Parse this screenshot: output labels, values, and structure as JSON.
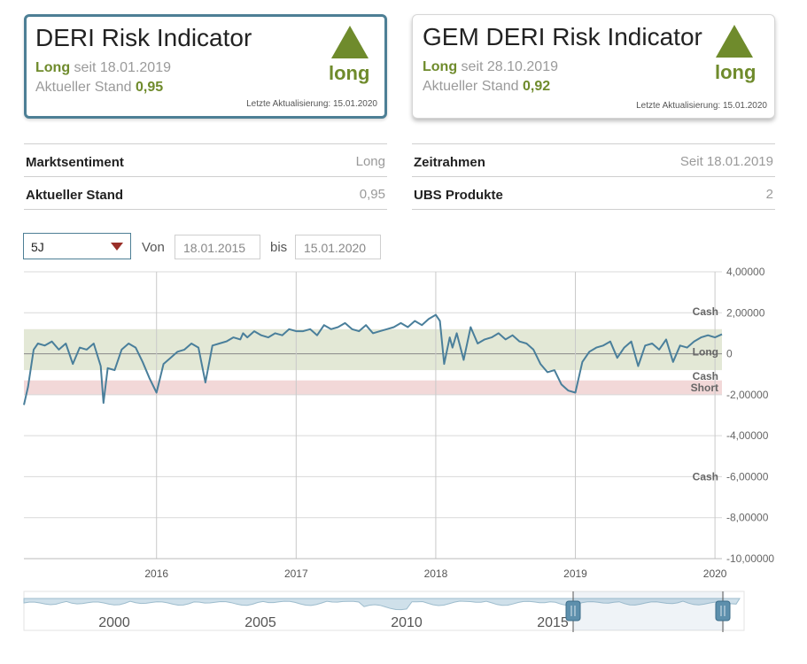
{
  "cards": [
    {
      "title": "DERI Risk Indicator",
      "status": "Long",
      "since_prefix": "seit",
      "since": "18.01.2019",
      "stand_label": "Aktueller Stand",
      "stand_value": "0,95",
      "badge": "long",
      "updated": "Letzte Aktualisierung: 15.01.2020",
      "badge_color": "#6f8b2c"
    },
    {
      "title": "GEM DERI Risk Indicator",
      "status": "Long",
      "since_prefix": "seit",
      "since": "28.10.2019",
      "stand_label": "Aktueller Stand",
      "stand_value": "0,92",
      "badge": "long",
      "updated": "Letzte Aktualisierung: 15.01.2020",
      "badge_color": "#6f8b2c"
    }
  ],
  "info_left": [
    {
      "key": "Marktsentiment",
      "value": "Long"
    },
    {
      "key": "Aktueller Stand",
      "value": "0,95"
    }
  ],
  "info_right": [
    {
      "key": "Zeitrahmen",
      "value": "Seit 18.01.2019"
    },
    {
      "key": "UBS Produkte",
      "value": "2"
    }
  ],
  "controls": {
    "range_selected": "5J",
    "from_label": "Von",
    "from_value": "18.01.2015",
    "to_label": "bis",
    "to_value": "15.01.2020"
  },
  "chart_data": {
    "type": "line",
    "title": "DERI Risk Indicator",
    "x_range": [
      2015.05,
      2020.05
    ],
    "ylim": [
      -10,
      4
    ],
    "y_ticks": [
      4,
      2,
      0,
      -2,
      -4,
      -6,
      -8,
      -10
    ],
    "y_tick_labels": [
      "4,00000",
      "2,00000",
      "0",
      "-2,00000",
      "-4,00000",
      "-6,00000",
      "-8,00000",
      "-10,00000"
    ],
    "x_ticks": [
      2016,
      2017,
      2018,
      2019,
      2020
    ],
    "x_tick_labels": [
      "2016",
      "2017",
      "2018",
      "2019",
      "2020"
    ],
    "zones": [
      {
        "name": "Long",
        "from": -0.8,
        "to": 1.2,
        "color": "#e3e8d6"
      },
      {
        "name": "Short",
        "from": -2.0,
        "to": -1.3,
        "color": "#f2d8d8"
      }
    ],
    "zone_labels": [
      {
        "text": "Cash",
        "y": 2.05,
        "color": "#666666"
      },
      {
        "text": "Long",
        "y": 0.1,
        "color": "#6f8b2c"
      },
      {
        "text": "Cash",
        "y": -1.1,
        "color": "#666666"
      },
      {
        "text": "Short",
        "y": -1.65,
        "color": "#a0302c"
      },
      {
        "text": "Cash",
        "y": -6.0,
        "color": "#666666"
      }
    ],
    "series": [
      {
        "name": "DERI Risk Indicator",
        "color": "#4a7f9b",
        "x": [
          2015.05,
          2015.08,
          2015.12,
          2015.15,
          2015.2,
          2015.25,
          2015.3,
          2015.35,
          2015.4,
          2015.45,
          2015.5,
          2015.55,
          2015.6,
          2015.62,
          2015.65,
          2015.7,
          2015.75,
          2015.8,
          2015.85,
          2015.9,
          2015.95,
          2016.0,
          2016.05,
          2016.1,
          2016.15,
          2016.2,
          2016.25,
          2016.3,
          2016.35,
          2016.4,
          2016.45,
          2016.5,
          2016.55,
          2016.6,
          2016.62,
          2016.65,
          2016.7,
          2016.75,
          2016.8,
          2016.85,
          2016.9,
          2016.95,
          2017.0,
          2017.05,
          2017.1,
          2017.15,
          2017.2,
          2017.25,
          2017.3,
          2017.35,
          2017.4,
          2017.45,
          2017.5,
          2017.55,
          2017.6,
          2017.65,
          2017.7,
          2017.75,
          2017.8,
          2017.85,
          2017.9,
          2017.95,
          2018.0,
          2018.03,
          2018.06,
          2018.1,
          2018.12,
          2018.15,
          2018.2,
          2018.25,
          2018.3,
          2018.35,
          2018.4,
          2018.45,
          2018.5,
          2018.55,
          2018.6,
          2018.65,
          2018.7,
          2018.75,
          2018.8,
          2018.85,
          2018.9,
          2018.95,
          2019.0,
          2019.05,
          2019.1,
          2019.15,
          2019.2,
          2019.25,
          2019.3,
          2019.35,
          2019.4,
          2019.45,
          2019.5,
          2019.55,
          2019.6,
          2019.65,
          2019.7,
          2019.75,
          2019.8,
          2019.85,
          2019.9,
          2019.95,
          2020.0,
          2020.05
        ],
        "y": [
          -2.5,
          -1.6,
          0.2,
          0.5,
          0.4,
          0.6,
          0.2,
          0.5,
          -0.5,
          0.3,
          0.2,
          0.5,
          -0.6,
          -2.4,
          -0.7,
          -0.8,
          0.2,
          0.5,
          0.3,
          -0.4,
          -1.2,
          -1.9,
          -0.5,
          -0.2,
          0.1,
          0.2,
          0.5,
          0.3,
          -1.4,
          0.4,
          0.5,
          0.6,
          0.8,
          0.7,
          1.0,
          0.8,
          1.1,
          0.9,
          0.8,
          1.0,
          0.9,
          1.2,
          1.1,
          1.1,
          1.2,
          0.9,
          1.4,
          1.2,
          1.3,
          1.5,
          1.2,
          1.1,
          1.4,
          1.0,
          1.1,
          1.2,
          1.3,
          1.5,
          1.3,
          1.6,
          1.4,
          1.7,
          1.9,
          1.6,
          -0.5,
          0.8,
          0.3,
          1.0,
          -0.3,
          1.3,
          0.5,
          0.7,
          0.8,
          1.0,
          0.7,
          0.9,
          0.6,
          0.5,
          0.2,
          -0.5,
          -0.9,
          -0.8,
          -1.5,
          -1.8,
          -1.9,
          -0.4,
          0.1,
          0.3,
          0.4,
          0.6,
          -0.2,
          0.3,
          0.6,
          -0.6,
          0.4,
          0.5,
          0.2,
          0.7,
          -0.4,
          0.4,
          0.3,
          0.6,
          0.8,
          0.9,
          0.8,
          0.95
        ]
      }
    ],
    "navigator": {
      "x_ticks": [
        2000,
        2005,
        2010,
        2015
      ],
      "x_tick_labels": [
        "2000",
        "2005",
        "2010",
        "2015"
      ],
      "range_start": "18.01.2015",
      "range_end": "15.01.2020"
    }
  }
}
